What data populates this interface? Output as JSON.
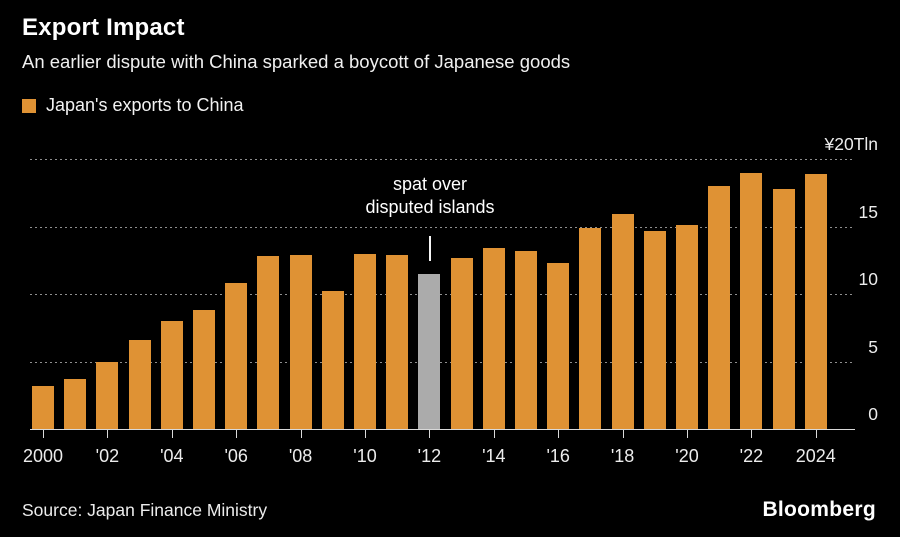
{
  "header": {
    "title": "Export Impact",
    "subtitle": "An earlier dispute with China sparked a boycott of Japanese goods"
  },
  "legend": {
    "label": "Japan's exports to China",
    "swatch_color": "#DF9234"
  },
  "annotation": {
    "line1": "spat over",
    "line2": "disputed islands",
    "target_year": 2012
  },
  "footer": {
    "source": "Source: Japan Finance Ministry",
    "brand": "Bloomberg"
  },
  "colors": {
    "background": "#000000",
    "bar": "#DF9234",
    "highlight_bar": "#ABABAB",
    "grid": "#8F8F8F",
    "axis": "#D9D9D9",
    "text": "#FFFFFF"
  },
  "chart_data": {
    "type": "bar",
    "title": "Export Impact",
    "ylabel": "Japan's exports to China (¥ Tln)",
    "ylim": [
      0,
      20
    ],
    "grid": "dotted-horizontal",
    "legend_position": "top-left",
    "y_axis": {
      "unit_label": "¥20Tln",
      "gridline_values": [
        20,
        15,
        10,
        5
      ],
      "tick_labels": [
        {
          "value": 20,
          "label": "¥20Tln"
        },
        {
          "value": 15,
          "label": "15"
        },
        {
          "value": 10,
          "label": "10"
        },
        {
          "value": 5,
          "label": "5"
        },
        {
          "value": 0,
          "label": "0"
        }
      ]
    },
    "x_axis": {
      "tick_labels": [
        {
          "year": 2000,
          "label": "2000"
        },
        {
          "year": 2002,
          "label": "'02"
        },
        {
          "year": 2004,
          "label": "'04"
        },
        {
          "year": 2006,
          "label": "'06"
        },
        {
          "year": 2008,
          "label": "'08"
        },
        {
          "year": 2010,
          "label": "'10"
        },
        {
          "year": 2012,
          "label": "'12"
        },
        {
          "year": 2014,
          "label": "'14"
        },
        {
          "year": 2016,
          "label": "'16"
        },
        {
          "year": 2018,
          "label": "'18"
        },
        {
          "year": 2020,
          "label": "'20"
        },
        {
          "year": 2022,
          "label": "'22"
        },
        {
          "year": 2024,
          "label": "2024"
        }
      ]
    },
    "categories": [
      2000,
      2001,
      2002,
      2003,
      2004,
      2005,
      2006,
      2007,
      2008,
      2009,
      2010,
      2011,
      2012,
      2013,
      2014,
      2015,
      2016,
      2017,
      2018,
      2019,
      2020,
      2021,
      2022,
      2023,
      2024
    ],
    "values": [
      3.2,
      3.7,
      5.0,
      6.6,
      8.0,
      8.8,
      10.8,
      12.8,
      12.9,
      10.2,
      13.0,
      12.9,
      11.5,
      12.7,
      13.4,
      13.2,
      12.3,
      14.9,
      15.9,
      14.7,
      15.1,
      18.0,
      19.0,
      17.8,
      18.9
    ],
    "highlight": {
      "year": 2012,
      "value": 11.5,
      "color": "#ABABAB",
      "annotation": "spat over disputed islands"
    }
  }
}
